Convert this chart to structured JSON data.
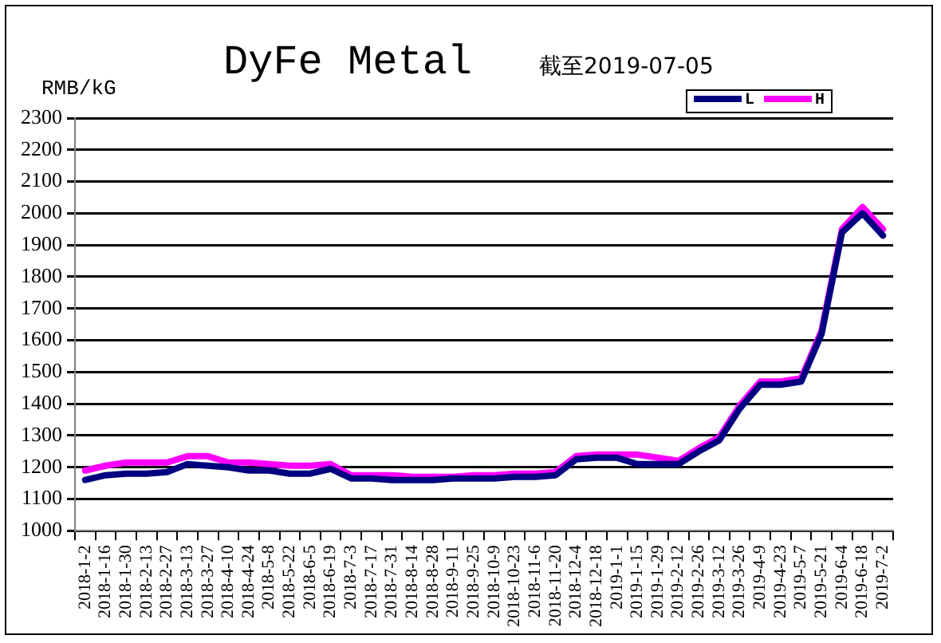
{
  "chart_data": {
    "type": "line",
    "title": "DyFe Metal",
    "subtitle": "截至2019-07-05",
    "ylabel": "RMB/kG",
    "categories": [
      "2018-1-2",
      "2018-1-16",
      "2018-1-30",
      "2018-2-13",
      "2018-2-27",
      "2018-3-13",
      "2018-3-27",
      "2018-4-10",
      "2018-4-24",
      "2018-5-8",
      "2018-5-22",
      "2018-6-5",
      "2018-6-19",
      "2018-7-3",
      "2018-7-17",
      "2018-7-31",
      "2018-8-14",
      "2018-8-28",
      "2018-9-11",
      "2018-9-25",
      "2018-10-9",
      "2018-10-23",
      "2018-11-6",
      "2018-11-20",
      "2018-12-4",
      "2018-12-18",
      "2019-1-1",
      "2019-1-15",
      "2019-1-29",
      "2019-2-12",
      "2019-2-26",
      "2019-3-12",
      "2019-3-26",
      "2019-4-9",
      "2019-4-23",
      "2019-5-7",
      "2019-5-21",
      "2019-6-4",
      "2019-6-18",
      "2019-7-2"
    ],
    "series": [
      {
        "name": "L",
        "color": "#000080",
        "values": [
          1160,
          1175,
          1180,
          1180,
          1185,
          1210,
          1205,
          1200,
          1190,
          1190,
          1180,
          1180,
          1195,
          1165,
          1165,
          1160,
          1160,
          1160,
          1165,
          1165,
          1165,
          1170,
          1170,
          1175,
          1225,
          1230,
          1230,
          1210,
          1210,
          1210,
          1250,
          1285,
          1385,
          1460,
          1460,
          1470,
          1620,
          1940,
          2000,
          1930
        ]
      },
      {
        "name": "H",
        "color": "#ff00ff",
        "values": [
          1190,
          1205,
          1215,
          1215,
          1215,
          1235,
          1235,
          1215,
          1215,
          1210,
          1205,
          1205,
          1210,
          1175,
          1175,
          1175,
          1170,
          1170,
          1170,
          1175,
          1175,
          1180,
          1180,
          1185,
          1235,
          1240,
          1240,
          1240,
          1230,
          1220,
          1260,
          1295,
          1395,
          1470,
          1470,
          1480,
          1630,
          1950,
          2020,
          1950
        ]
      }
    ],
    "ylim": [
      1000,
      2300
    ],
    "yticks": [
      1000,
      1100,
      1200,
      1300,
      1400,
      1500,
      1600,
      1700,
      1800,
      1900,
      2000,
      2100,
      2200,
      2300
    ],
    "grid": "y",
    "legend": "top right",
    "marker": "none",
    "line_style": "solid"
  }
}
